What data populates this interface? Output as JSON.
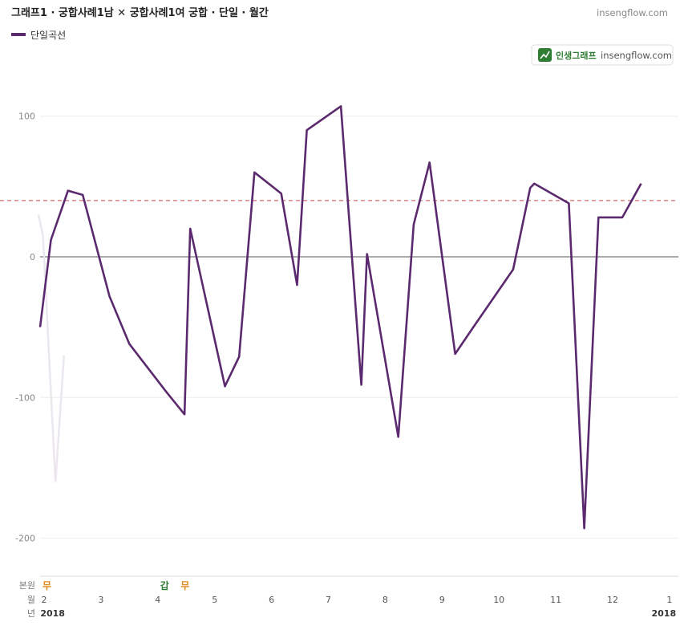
{
  "header": {
    "title": "그래프1 · 궁합사례1남 ✕ 궁합사례1여 궁합 · 단일 · 월간",
    "site": "insengflow.com"
  },
  "badge": {
    "brand": "인생그래프",
    "site": "insengflow.com"
  },
  "colors": {
    "series": "#5b2a6e",
    "reference_line": "#d46a6a",
    "zero_line": "#777777",
    "grid": "#eeeeee",
    "ghost_series": "#ece6ee",
    "badge_green": "#2e7d32",
    "tag_orange": "#e08a1e",
    "tag_green": "#2f7d3a"
  },
  "chart_data": {
    "type": "line",
    "ylim": [
      -225,
      110
    ],
    "xlim": [
      1.9,
      13.15
    ],
    "yticks": [
      100,
      0,
      -100,
      -200
    ],
    "ytick_labels": [
      "100",
      "0",
      "-100",
      "-200"
    ],
    "reference_value": 40,
    "grid": true,
    "legend": "top-left",
    "series": [
      {
        "name": "단일곡선",
        "x": [
          1.93,
          2.12,
          2.42,
          2.68,
          3.15,
          3.5,
          4.15,
          4.47,
          4.57,
          5.18,
          5.43,
          5.7,
          6.17,
          6.45,
          6.62,
          7.22,
          7.58,
          7.68,
          8.23,
          8.5,
          8.78,
          9.23,
          9.55,
          10.25,
          10.55,
          10.62,
          11.23,
          11.5,
          11.75,
          12.17,
          12.5
        ],
        "y": [
          -50,
          12,
          47,
          44,
          -28,
          -62,
          -96,
          -112,
          20,
          -92,
          -71,
          60,
          45,
          -20,
          90,
          107,
          -91,
          2,
          -128,
          23,
          67,
          -69,
          -50,
          -9,
          49,
          52,
          38,
          -193,
          28,
          28,
          52
        ]
      }
    ],
    "ghost_series": {
      "x": [
        1.9,
        1.98,
        2.2,
        2.35
      ],
      "y": [
        30,
        15,
        -160,
        -70
      ]
    },
    "x_ticks": [
      "2",
      "3",
      "4",
      "5",
      "6",
      "7",
      "8",
      "9",
      "10",
      "11",
      "12",
      "1"
    ],
    "x_tick_values": [
      2,
      3,
      4,
      5,
      6,
      7,
      8,
      9,
      10,
      11,
      12,
      13
    ],
    "row_labels": {
      "tags": "본원",
      "month": "월",
      "year": "년"
    },
    "year_labels": [
      {
        "text": "2018",
        "x": 2.15
      },
      {
        "text": "2018",
        "x": 12.9
      }
    ],
    "tags": [
      {
        "text": "무",
        "x": 2.05,
        "color": "orange"
      },
      {
        "text": "갑",
        "x": 4.12,
        "color": "green"
      },
      {
        "text": "무",
        "x": 4.48,
        "color": "orange"
      }
    ]
  }
}
